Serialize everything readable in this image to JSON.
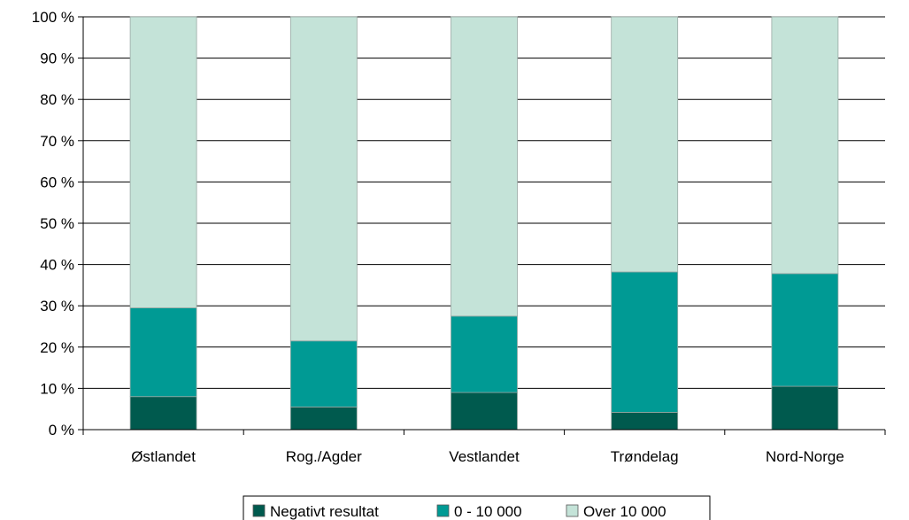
{
  "chart_data": {
    "type": "bar",
    "stacked": true,
    "percent": true,
    "categories": [
      "Østlandet",
      "Rog./Agder",
      "Vestlandet",
      "Trøndelag",
      "Nord-Norge"
    ],
    "series": [
      {
        "name": "Negativt resultat",
        "color": "#005a4e",
        "values": [
          8,
          5.5,
          9,
          4.2,
          10.5
        ]
      },
      {
        "name": "0 - 10 000",
        "color": "#009a94",
        "values": [
          21.5,
          16,
          18.5,
          34,
          27.3
        ]
      },
      {
        "name": "Over 10 000",
        "color": "#c4e3d8",
        "values": [
          70.5,
          78.5,
          72.5,
          61.8,
          62.2
        ]
      }
    ],
    "y_ticks": [
      "0 %",
      "10 %",
      "20 %",
      "30 %",
      "40 %",
      "50 %",
      "60 %",
      "70 %",
      "80 %",
      "90 %",
      "100 %"
    ],
    "ylim": [
      0,
      100
    ],
    "grid": true,
    "legend_position": "bottom"
  }
}
